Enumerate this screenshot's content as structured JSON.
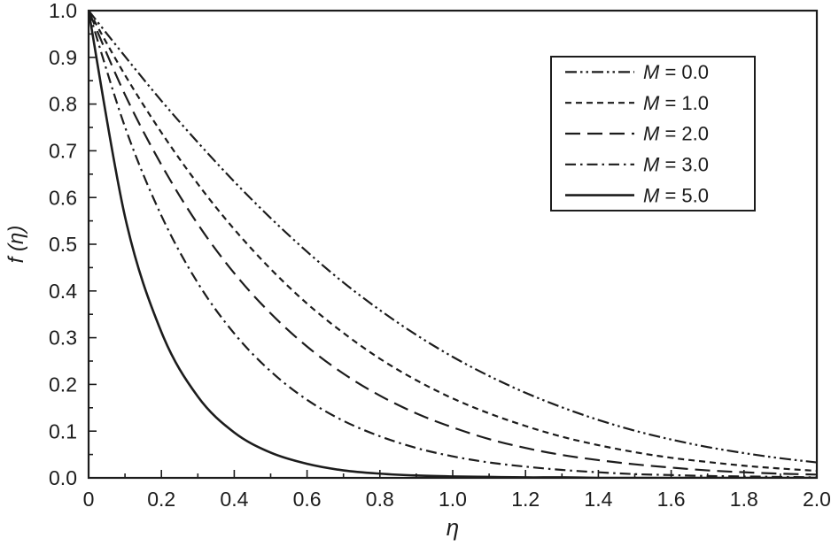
{
  "figure": {
    "background": "#ffffff",
    "line_color": "#1c1c1c",
    "frame_color": "#1c1c1c"
  },
  "chart_data": {
    "type": "line",
    "title": "",
    "xlabel": "η",
    "ylabel": "f (η)",
    "xlim": [
      0,
      2.0
    ],
    "ylim": [
      0.0,
      1.0
    ],
    "grid": false,
    "legend_position": "upper-right",
    "x_tick_labels": [
      "0",
      "0.2",
      "0.4",
      "0.6",
      "0.8",
      "1.0",
      "1.2",
      "1.4",
      "1.6",
      "1.8",
      "2.0"
    ],
    "x_tick_values": [
      0,
      0.2,
      0.4,
      0.6,
      0.8,
      1.0,
      1.2,
      1.4,
      1.6,
      1.8,
      2.0
    ],
    "y_tick_labels": [
      "0.0",
      "0.1",
      "0.2",
      "0.3",
      "0.4",
      "0.5",
      "0.6",
      "0.7",
      "0.8",
      "0.9",
      "1.0"
    ],
    "y_tick_values": [
      0.0,
      0.1,
      0.2,
      0.3,
      0.4,
      0.5,
      0.6,
      0.7,
      0.8,
      0.9,
      1.0
    ],
    "x": [
      0,
      0.1,
      0.2,
      0.3,
      0.4,
      0.5,
      0.6,
      0.7,
      0.8,
      0.9,
      1.0,
      1.1,
      1.2,
      1.3,
      1.4,
      1.5,
      1.6,
      1.7,
      1.8,
      1.9,
      2.0
    ],
    "series": [
      {
        "name": "M = 0.0",
        "line_style": "dash-dot-dot",
        "dash": "13 4 2.5 4 2.5 4",
        "values": [
          1.0,
          0.902,
          0.807,
          0.718,
          0.634,
          0.556,
          0.484,
          0.418,
          0.359,
          0.306,
          0.259,
          0.218,
          0.182,
          0.151,
          0.124,
          0.101,
          0.082,
          0.066,
          0.053,
          0.042,
          0.033
        ]
      },
      {
        "name": "M = 1.0",
        "line_style": "short-dash",
        "dash": "7 5",
        "values": [
          1.0,
          0.862,
          0.739,
          0.629,
          0.532,
          0.447,
          0.373,
          0.31,
          0.255,
          0.209,
          0.17,
          0.138,
          0.111,
          0.088,
          0.07,
          0.055,
          0.043,
          0.034,
          0.026,
          0.02,
          0.015
        ]
      },
      {
        "name": "M = 2.0",
        "line_style": "long-dash",
        "dash": "17 8",
        "values": [
          1.0,
          0.82,
          0.67,
          0.543,
          0.438,
          0.352,
          0.281,
          0.223,
          0.176,
          0.138,
          0.108,
          0.083,
          0.064,
          0.049,
          0.038,
          0.029,
          0.022,
          0.016,
          0.012,
          0.009,
          0.007
        ]
      },
      {
        "name": "M = 3.0",
        "line_style": "dash-dot",
        "dash": "12 5 2.5 5",
        "values": [
          1.0,
          0.751,
          0.561,
          0.417,
          0.309,
          0.228,
          0.167,
          0.122,
          0.089,
          0.064,
          0.046,
          0.033,
          0.024,
          0.017,
          0.012,
          0.008,
          0.006,
          0.004,
          0.003,
          0.002,
          0.001
        ]
      },
      {
        "name": "M = 5.0",
        "line_style": "solid",
        "dash": "",
        "values": [
          1.0,
          0.559,
          0.312,
          0.174,
          0.097,
          0.054,
          0.03,
          0.016,
          0.009,
          0.005,
          0.003,
          0.002,
          0.001,
          0.001,
          0.0,
          0.0,
          0.0,
          0.0,
          0.0,
          0.0,
          0.0
        ]
      }
    ]
  }
}
